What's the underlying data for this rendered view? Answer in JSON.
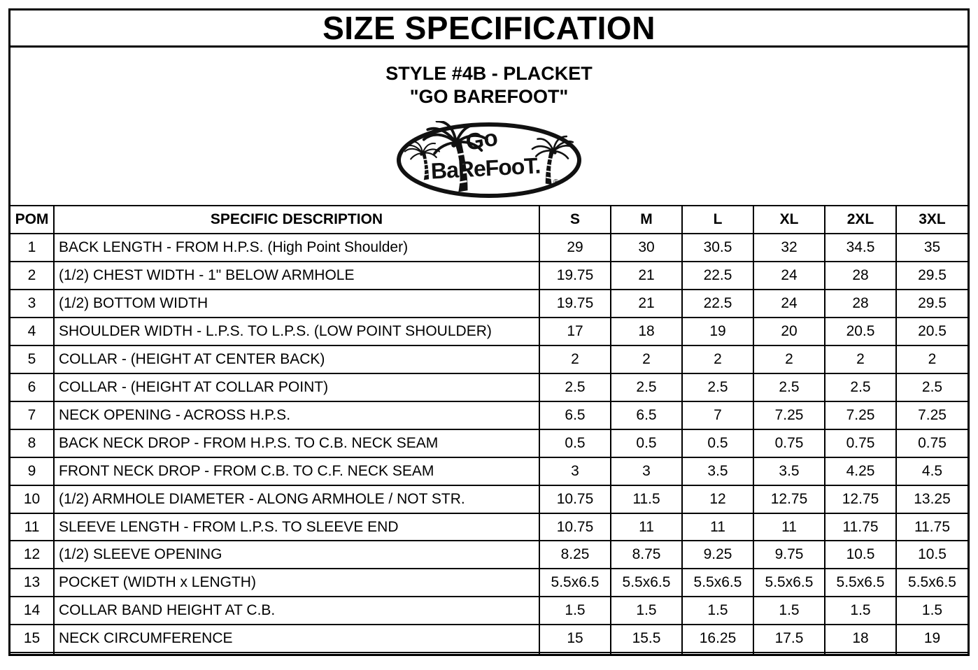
{
  "page": {
    "title": "SIZE SPECIFICATION",
    "style_line": "STYLE #4B - PLACKET",
    "brand_line": "\"GO BAREFOOT\""
  },
  "logo": {
    "text_top": "Go",
    "text_main": "BaReFooT.",
    "registered_mark": "®"
  },
  "colors": {
    "ink": "#000000",
    "paper": "#ffffff"
  },
  "table": {
    "headers": [
      "POM",
      "SPECIFIC DESCRIPTION",
      "S",
      "M",
      "L",
      "XL",
      "2XL",
      "3XL"
    ],
    "rows": [
      {
        "pom": "1",
        "description": "BACK LENGTH - FROM H.P.S. (High Point Shoulder)",
        "values": [
          "29",
          "30",
          "30.5",
          "32",
          "34.5",
          "35"
        ]
      },
      {
        "pom": "2",
        "description": "(1/2) CHEST WIDTH - 1\" BELOW ARMHOLE",
        "values": [
          "19.75",
          "21",
          "22.5",
          "24",
          "28",
          "29.5"
        ]
      },
      {
        "pom": "3",
        "description": "(1/2) BOTTOM WIDTH",
        "values": [
          "19.75",
          "21",
          "22.5",
          "24",
          "28",
          "29.5"
        ]
      },
      {
        "pom": "4",
        "description": "SHOULDER WIDTH - L.P.S. TO L.P.S. (LOW POINT SHOULDER)",
        "values": [
          "17",
          "18",
          "19",
          "20",
          "20.5",
          "20.5"
        ]
      },
      {
        "pom": "5",
        "description": "COLLAR - (HEIGHT AT CENTER BACK)",
        "values": [
          "2",
          "2",
          "2",
          "2",
          "2",
          "2"
        ]
      },
      {
        "pom": "6",
        "description": "COLLAR - (HEIGHT AT COLLAR POINT)",
        "values": [
          "2.5",
          "2.5",
          "2.5",
          "2.5",
          "2.5",
          "2.5"
        ]
      },
      {
        "pom": "7",
        "description": "NECK OPENING - ACROSS H.P.S.",
        "values": [
          "6.5",
          "6.5",
          "7",
          "7.25",
          "7.25",
          "7.25"
        ]
      },
      {
        "pom": "8",
        "description": "BACK NECK DROP - FROM H.P.S. TO C.B. NECK SEAM",
        "values": [
          "0.5",
          "0.5",
          "0.5",
          "0.75",
          "0.75",
          "0.75"
        ]
      },
      {
        "pom": "9",
        "description": "FRONT NECK DROP - FROM C.B. TO C.F. NECK SEAM",
        "values": [
          "3",
          "3",
          "3.5",
          "3.5",
          "4.25",
          "4.5"
        ]
      },
      {
        "pom": "10",
        "description": "(1/2) ARMHOLE DIAMETER - ALONG ARMHOLE / NOT STR.",
        "values": [
          "10.75",
          "11.5",
          "12",
          "12.75",
          "12.75",
          "13.25"
        ]
      },
      {
        "pom": "11",
        "description": "SLEEVE LENGTH - FROM L.P.S. TO SLEEVE END",
        "values": [
          "10.75",
          "11",
          "11",
          "11",
          "11.75",
          "11.75"
        ]
      },
      {
        "pom": "12",
        "description": "(1/2) SLEEVE OPENING",
        "values": [
          "8.25",
          "8.75",
          "9.25",
          "9.75",
          "10.5",
          "10.5"
        ]
      },
      {
        "pom": "13",
        "description": "POCKET (WIDTH x LENGTH)",
        "values": [
          "5.5x6.5",
          "5.5x6.5",
          "5.5x6.5",
          "5.5x6.5",
          "5.5x6.5",
          "5.5x6.5"
        ]
      },
      {
        "pom": "14",
        "description": "COLLAR BAND HEIGHT AT C.B.",
        "values": [
          "1.5",
          "1.5",
          "1.5",
          "1.5",
          "1.5",
          "1.5"
        ]
      },
      {
        "pom": "15",
        "description": "NECK CIRCUMFERENCE",
        "values": [
          "15",
          "15.5",
          "16.25",
          "17.5",
          "18",
          "19"
        ]
      },
      {
        "pom": "",
        "description": "",
        "values": [
          "",
          "",
          "",
          "",
          "",
          ""
        ]
      }
    ]
  }
}
